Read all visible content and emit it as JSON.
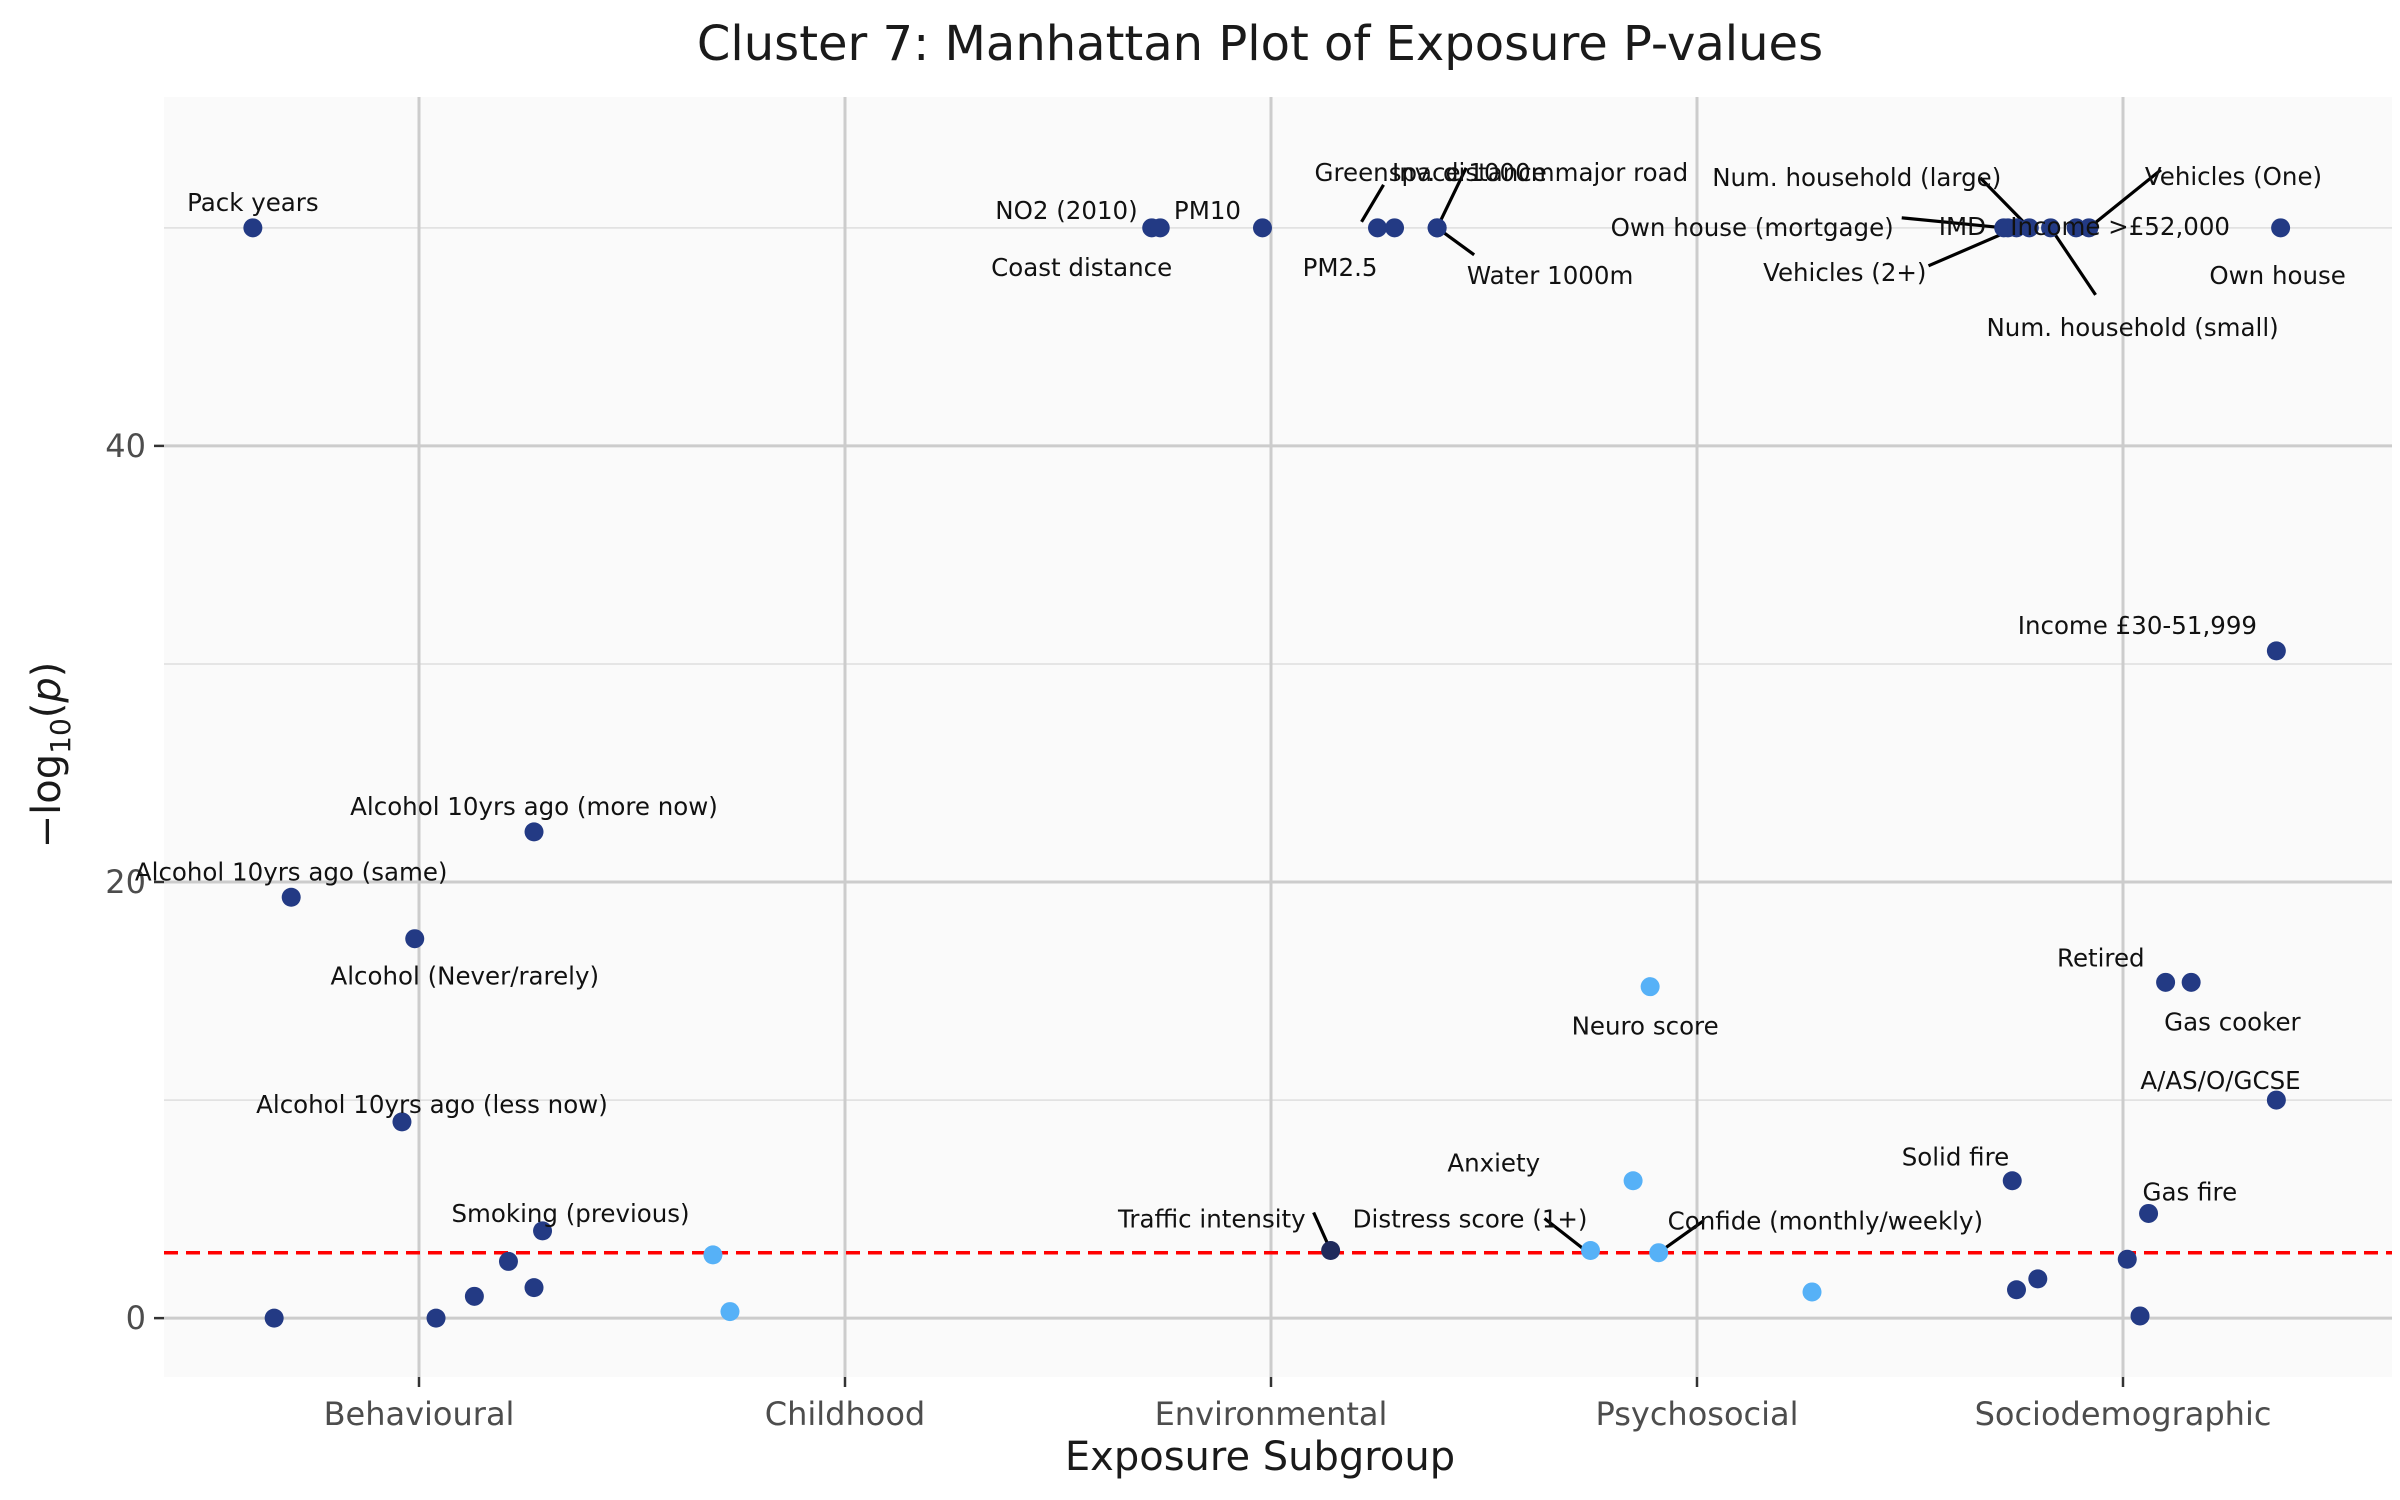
{
  "chart_data": {
    "type": "scatter",
    "title": "Cluster 7: Manhattan Plot of Exposure P-values",
    "xlabel": "Exposure Subgroup",
    "ylabel": "-log10(p)",
    "categories": [
      "Behavioural",
      "Childhood",
      "Environmental",
      "Psychosocial",
      "Sociodemographic"
    ],
    "ylim": [
      -2.7,
      56
    ],
    "y_ticks": [
      0,
      20,
      40
    ],
    "threshold": 3,
    "threshold_color": "#ff0000",
    "colors": {
      "dark": "#233a84",
      "light": "#56b1f7",
      "navy": "#1f2a5c"
    },
    "grid": true,
    "legend": "none",
    "points": [
      {
        "cat": 0,
        "x": -0.39,
        "y": 50,
        "label": "Pack years",
        "color": "dark"
      },
      {
        "cat": 0,
        "x": -0.3,
        "y": 19.3,
        "label": "Alcohol 10yrs ago (same)",
        "color": "dark"
      },
      {
        "cat": 0,
        "x": 0.27,
        "y": 22.3,
        "label": "Alcohol 10yrs ago (more now)",
        "color": "dark"
      },
      {
        "cat": 0,
        "x": -0.01,
        "y": 17.4,
        "label": "Alcohol (Never/rarely)",
        "color": "dark"
      },
      {
        "cat": 0,
        "x": -0.04,
        "y": 9.0,
        "label": "Alcohol 10yrs ago (less now)",
        "color": "dark"
      },
      {
        "cat": 0,
        "x": 0.29,
        "y": 4.0,
        "label": "Smoking (previous)",
        "color": "dark"
      },
      {
        "cat": 0,
        "x": -0.34,
        "y": 0.0,
        "label": "",
        "color": "dark"
      },
      {
        "cat": 0,
        "x": 0.04,
        "y": 0.0,
        "label": "",
        "color": "dark"
      },
      {
        "cat": 0,
        "x": 0.13,
        "y": 1.0,
        "label": "",
        "color": "dark"
      },
      {
        "cat": 0,
        "x": 0.21,
        "y": 2.6,
        "label": "",
        "color": "dark"
      },
      {
        "cat": 0,
        "x": 0.27,
        "y": 1.4,
        "label": "",
        "color": "dark"
      },
      {
        "cat": 1,
        "x": -0.31,
        "y": 2.9,
        "label": "",
        "color": "light"
      },
      {
        "cat": 1,
        "x": -0.27,
        "y": 0.3,
        "label": "",
        "color": "light"
      },
      {
        "cat": 2,
        "x": -0.28,
        "y": 50,
        "label": "NO2 (2010)",
        "color": "dark"
      },
      {
        "cat": 2,
        "x": -0.26,
        "y": 50,
        "label": "Coast distance",
        "color": "dark"
      },
      {
        "cat": 2,
        "x": -0.02,
        "y": 50,
        "label": "PM10",
        "color": "dark"
      },
      {
        "cat": 2,
        "x": 0.25,
        "y": 50,
        "label": "PM2.5",
        "color": "dark"
      },
      {
        "cat": 2,
        "x": 0.29,
        "y": 50,
        "label": "Greenspace 1000m",
        "color": "dark"
      },
      {
        "cat": 2,
        "x": 0.39,
        "y": 50,
        "label": "Inv. distance major road",
        "color": "dark"
      },
      {
        "cat": 2,
        "x": 0.39,
        "y": 50,
        "label": "Water 1000m",
        "color": "dark"
      },
      {
        "cat": 2,
        "x": 0.14,
        "y": 3.1,
        "label": "Traffic intensity",
        "color": "navy"
      },
      {
        "cat": 3,
        "x": -0.11,
        "y": 15.2,
        "label": "Neuro score",
        "color": "light"
      },
      {
        "cat": 3,
        "x": -0.15,
        "y": 6.3,
        "label": "Anxiety",
        "color": "light"
      },
      {
        "cat": 3,
        "x": -0.25,
        "y": 3.1,
        "label": "Distress score (1+)",
        "color": "light"
      },
      {
        "cat": 3,
        "x": -0.09,
        "y": 3.0,
        "label": "Confide (monthly/weekly)",
        "color": "light"
      },
      {
        "cat": 3,
        "x": 0.27,
        "y": 1.2,
        "label": "",
        "color": "light"
      },
      {
        "cat": 4,
        "x": -0.28,
        "y": 50,
        "label": "Own house (mortgage)",
        "color": "dark"
      },
      {
        "cat": 4,
        "x": -0.27,
        "y": 50,
        "label": "IMD",
        "color": "dark"
      },
      {
        "cat": 4,
        "x": -0.25,
        "y": 50,
        "label": "Vehicles (2+)",
        "color": "dark"
      },
      {
        "cat": 4,
        "x": -0.22,
        "y": 50,
        "label": "Num. household (large)",
        "color": "dark"
      },
      {
        "cat": 4,
        "x": -0.17,
        "y": 50,
        "label": "Num. household (small)",
        "color": "dark"
      },
      {
        "cat": 4,
        "x": -0.11,
        "y": 50,
        "label": "Income >£52,000",
        "color": "dark"
      },
      {
        "cat": 4,
        "x": -0.08,
        "y": 50,
        "label": "Vehicles (One)",
        "color": "dark"
      },
      {
        "cat": 4,
        "x": 0.37,
        "y": 50,
        "label": "Own house",
        "color": "dark"
      },
      {
        "cat": 4,
        "x": 0.36,
        "y": 30.6,
        "label": "Income £30-51,999",
        "color": "dark"
      },
      {
        "cat": 4,
        "x": 0.1,
        "y": 15.4,
        "label": "Retired",
        "color": "dark"
      },
      {
        "cat": 4,
        "x": 0.16,
        "y": 15.4,
        "label": "Gas cooker",
        "color": "dark"
      },
      {
        "cat": 4,
        "x": 0.36,
        "y": 10.0,
        "label": "A/AS/O/GCSE",
        "color": "dark"
      },
      {
        "cat": 4,
        "x": -0.26,
        "y": 6.3,
        "label": "Solid fire",
        "color": "dark"
      },
      {
        "cat": 4,
        "x": 0.06,
        "y": 4.8,
        "label": "Gas fire",
        "color": "dark"
      },
      {
        "cat": 4,
        "x": 0.01,
        "y": 2.7,
        "label": "",
        "color": "dark"
      },
      {
        "cat": 4,
        "x": -0.25,
        "y": 1.3,
        "label": "",
        "color": "dark"
      },
      {
        "cat": 4,
        "x": -0.2,
        "y": 1.8,
        "label": "",
        "color": "dark"
      },
      {
        "cat": 4,
        "x": 0.04,
        "y": 0.1,
        "label": "",
        "color": "dark"
      }
    ]
  }
}
